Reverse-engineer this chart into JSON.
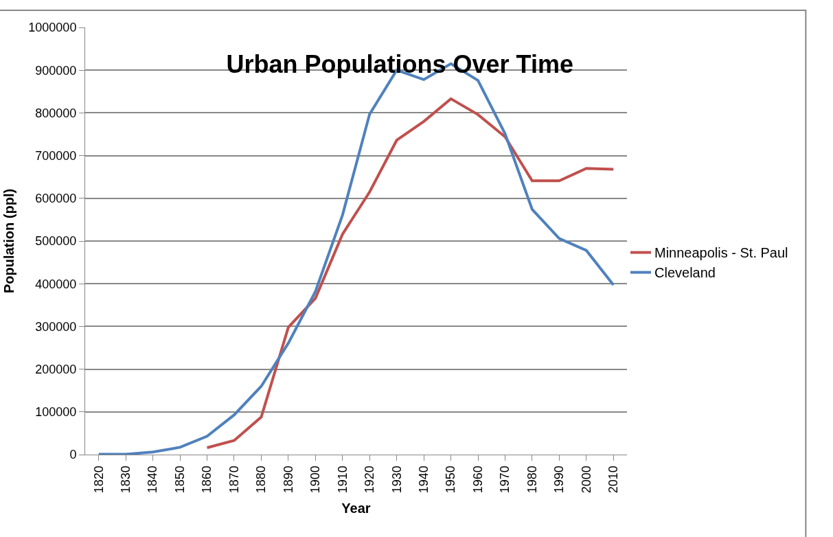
{
  "chart_data": {
    "type": "line",
    "title": "Urban Populations Over Time",
    "xlabel": "Year",
    "ylabel": "Population (ppl)",
    "categories": [
      "1820",
      "1830",
      "1840",
      "1850",
      "1860",
      "1870",
      "1880",
      "1890",
      "1900",
      "1910",
      "1920",
      "1930",
      "1940",
      "1950",
      "1960",
      "1970",
      "1980",
      "1990",
      "2000",
      "2010"
    ],
    "series": [
      {
        "name": "Minneapolis - St. Paul",
        "color": "#c0504d",
        "values": [
          null,
          null,
          null,
          null,
          16000,
          33000,
          88000,
          298000,
          366000,
          516000,
          615000,
          736000,
          780000,
          833000,
          796000,
          744000,
          641000,
          641000,
          670000,
          668000
        ]
      },
      {
        "name": "Cleveland",
        "color": "#4f81bd",
        "values": [
          1000,
          1000,
          6000,
          17000,
          43000,
          93000,
          160000,
          261000,
          382000,
          561000,
          797000,
          900000,
          878000,
          915000,
          876000,
          751000,
          574000,
          506000,
          478000,
          397000
        ]
      }
    ],
    "ylim": [
      0,
      1000000
    ],
    "yticks": [
      0,
      100000,
      200000,
      300000,
      400000,
      500000,
      600000,
      700000,
      800000,
      900000,
      1000000
    ],
    "grid": "y",
    "legend": "right",
    "marker": "none",
    "line_style": "solid"
  }
}
